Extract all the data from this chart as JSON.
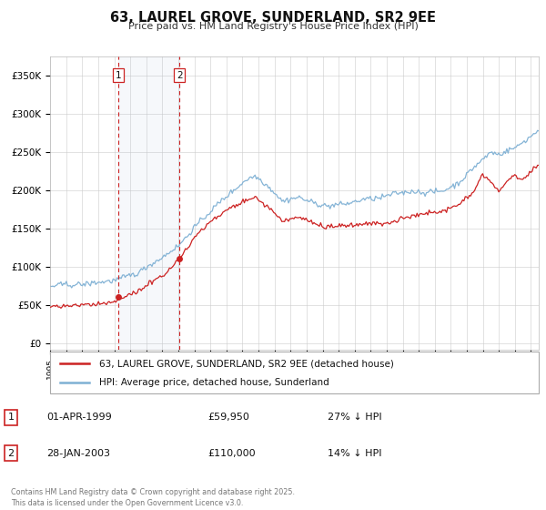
{
  "title": "63, LAUREL GROVE, SUNDERLAND, SR2 9EE",
  "subtitle": "Price paid vs. HM Land Registry's House Price Index (HPI)",
  "hpi_label": "HPI: Average price, detached house, Sunderland",
  "property_label": "63, LAUREL GROVE, SUNDERLAND, SR2 9EE (detached house)",
  "hpi_color": "#7eb0d4",
  "property_color": "#cc2222",
  "sale1_date": "01-APR-1999",
  "sale1_price": 59950,
  "sale1_hpi_pct": "27% ↓ HPI",
  "sale2_date": "28-JAN-2003",
  "sale2_price": 110000,
  "sale2_hpi_pct": "14% ↓ HPI",
  "sale1_year": 1999.25,
  "sale2_year": 2003.07,
  "ylabel_ticks": [
    0,
    50000,
    100000,
    150000,
    200000,
    250000,
    300000,
    350000
  ],
  "ylabel_labels": [
    "£0",
    "£50K",
    "£100K",
    "£150K",
    "£200K",
    "£250K",
    "£300K",
    "£350K"
  ],
  "copyright_text": "Contains HM Land Registry data © Crown copyright and database right 2025.\nThis data is licensed under the Open Government Licence v3.0.",
  "background_color": "#ffffff",
  "grid_color": "#cccccc",
  "xlim_start": 1995.0,
  "xlim_end": 2025.5,
  "ylim_bottom": -8000,
  "ylim_top": 375000
}
